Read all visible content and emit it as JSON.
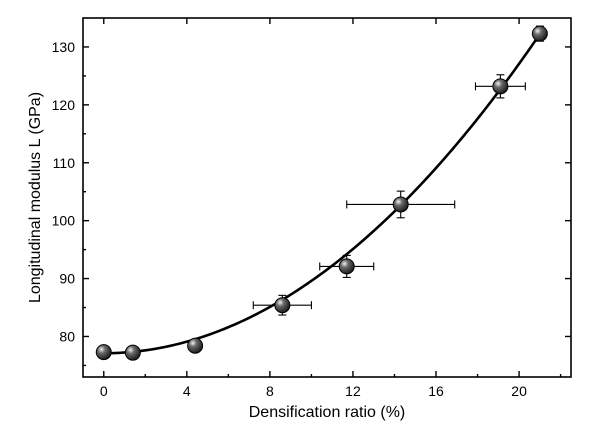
{
  "chart_data": {
    "type": "scatter",
    "title": "",
    "xlabel": "Densification ratio (%)",
    "ylabel": "Longitudinal modulus L (GPa)",
    "xlim": [
      -1,
      22.5
    ],
    "ylim": [
      73,
      135
    ],
    "xticks": [
      0,
      4,
      8,
      12,
      16,
      20
    ],
    "yticks": [
      80,
      90,
      100,
      110,
      120,
      130
    ],
    "grid": false,
    "legend": "none",
    "marker_color": "#1a1a1a",
    "line_color": "#000000",
    "points": [
      {
        "x": 0.0,
        "y": 77.3,
        "xerr": 0.0,
        "yerr": 0.0
      },
      {
        "x": 1.4,
        "y": 77.2,
        "xerr": 0.0,
        "yerr": 0.0
      },
      {
        "x": 4.4,
        "y": 78.4,
        "xerr": 0.0,
        "yerr": 0.7
      },
      {
        "x": 8.6,
        "y": 85.4,
        "xerr": 1.4,
        "yerr": 1.7
      },
      {
        "x": 11.7,
        "y": 92.1,
        "xerr": 1.3,
        "yerr": 1.9
      },
      {
        "x": 14.3,
        "y": 102.8,
        "xerr": 2.6,
        "yerr": 2.3
      },
      {
        "x": 19.1,
        "y": 123.2,
        "xerr": 1.2,
        "yerr": 2.0
      },
      {
        "x": 21.0,
        "y": 132.3,
        "xerr": 0.0,
        "yerr": 1.3
      }
    ],
    "fit_curve": {
      "type": "polynomial",
      "coefficients": [
        77.1,
        0.0,
        0.125
      ],
      "x_range": [
        0,
        21
      ]
    }
  }
}
